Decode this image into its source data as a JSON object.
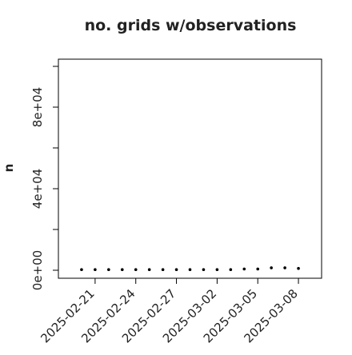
{
  "chart_data": {
    "type": "scatter",
    "title": "no. grids w/observations",
    "ylabel": "n",
    "x": [
      "2025-02-20",
      "2025-02-21",
      "2025-02-22",
      "2025-02-23",
      "2025-02-24",
      "2025-02-25",
      "2025-02-26",
      "2025-02-27",
      "2025-02-28",
      "2025-03-01",
      "2025-03-02",
      "2025-03-03",
      "2025-03-04",
      "2025-03-05",
      "2025-03-06",
      "2025-03-07",
      "2025-03-08"
    ],
    "values": [
      300,
      300,
      300,
      300,
      300,
      300,
      300,
      300,
      300,
      300,
      300,
      300,
      600,
      600,
      1200,
      1200,
      900
    ],
    "color": "#000000",
    "xlim": [
      "2025-02-18T07:00",
      "2025-03-09T17:00"
    ],
    "xticks": [
      {
        "value": "2025-02-21",
        "label": "2025-02-21",
        "color": "#000000"
      },
      {
        "value": "2025-02-24",
        "label": "2025-02-24",
        "color": "#000000"
      },
      {
        "value": "2025-02-27",
        "label": "2025-02-27",
        "color": "#228b22"
      },
      {
        "value": "2025-03-02",
        "label": "2025-03-02",
        "color": "#000000"
      },
      {
        "value": "2025-03-05",
        "label": "2025-03-05",
        "color": "#000000"
      },
      {
        "value": "2025-03-08",
        "label": "2025-03-08",
        "color": "#000000"
      }
    ],
    "ylim": [
      -3922,
      103530
    ],
    "yticks": [
      {
        "value": 0,
        "label": "0e+00"
      },
      {
        "value": 40000,
        "label": "4e+04"
      },
      {
        "value": 80000,
        "label": "8e+04"
      }
    ],
    "yticks_unlabeled": [
      20000,
      60000,
      100000
    ]
  }
}
